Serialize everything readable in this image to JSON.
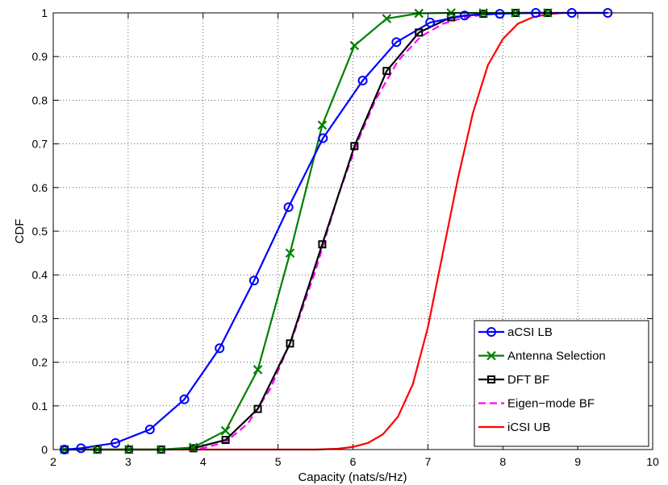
{
  "chart_data": {
    "type": "line",
    "title": "",
    "xlabel": "Capacity (nats/s/Hz)",
    "ylabel": "CDF",
    "xlim": [
      2,
      10
    ],
    "ylim": [
      0,
      1
    ],
    "xticks": [
      2,
      3,
      4,
      5,
      6,
      7,
      8,
      9,
      10
    ],
    "yticks": [
      0,
      0.1,
      0.2,
      0.3,
      0.4,
      0.5,
      0.6,
      0.7,
      0.8,
      0.9,
      1
    ],
    "xtick_labels": [
      "2",
      "3",
      "4",
      "5",
      "6",
      "7",
      "8",
      "9",
      "10"
    ],
    "ytick_labels": [
      "0",
      "0.1",
      "0.2",
      "0.3",
      "0.4",
      "0.5",
      "0.6",
      "0.7",
      "0.8",
      "0.9",
      "1"
    ],
    "grid": "dotted",
    "legend_position": "bottom-right",
    "series": [
      {
        "name": "aCSI LB",
        "color": "#0000ff",
        "marker": "circle",
        "dash": "solid",
        "x": [
          2.15,
          2.37,
          2.83,
          3.29,
          3.75,
          4.22,
          4.68,
          5.14,
          5.6,
          6.13,
          6.58,
          7.03,
          7.49,
          7.96,
          8.44,
          8.92,
          9.4
        ],
        "y": [
          0.0,
          0.003,
          0.015,
          0.046,
          0.115,
          0.232,
          0.387,
          0.555,
          0.713,
          0.845,
          0.933,
          0.978,
          0.994,
          0.998,
          1.0,
          1.0,
          1.0
        ]
      },
      {
        "name": "Antenna Selection",
        "color": "#008000",
        "marker": "x",
        "dash": "solid",
        "x": [
          2.15,
          2.59,
          3.01,
          3.44,
          3.87,
          4.3,
          4.73,
          5.16,
          5.59,
          6.02,
          6.45,
          6.88,
          7.31,
          7.74,
          8.17,
          8.6
        ],
        "y": [
          0.0,
          0.0,
          0.0,
          0.0,
          0.005,
          0.043,
          0.183,
          0.45,
          0.743,
          0.925,
          0.987,
          0.999,
          1.0,
          1.0,
          1.0,
          1.0
        ]
      },
      {
        "name": "DFT BF",
        "color": "#000000",
        "marker": "square",
        "dash": "solid",
        "x": [
          2.15,
          2.59,
          3.01,
          3.44,
          3.87,
          4.3,
          4.73,
          5.16,
          5.59,
          6.02,
          6.45,
          6.88,
          7.31,
          7.74,
          8.17,
          8.6
        ],
        "y": [
          0.0,
          0.0,
          0.0,
          0.0,
          0.003,
          0.022,
          0.093,
          0.243,
          0.47,
          0.695,
          0.867,
          0.955,
          0.99,
          0.998,
          1.0,
          1.0
        ]
      },
      {
        "name": "Eigen−mode BF",
        "color": "#ff00ff",
        "marker": "none",
        "dash": "dashed",
        "x": [
          2.15,
          3.0,
          3.6,
          4.0,
          4.3,
          4.6,
          4.9,
          5.2,
          5.5,
          5.8,
          6.05,
          6.3,
          6.6,
          6.9,
          7.2,
          7.5,
          7.8,
          8.2,
          8.6
        ],
        "y": [
          0.0,
          0.0,
          0.0,
          0.003,
          0.017,
          0.06,
          0.14,
          0.26,
          0.41,
          0.58,
          0.7,
          0.8,
          0.89,
          0.945,
          0.975,
          0.99,
          0.997,
          1.0,
          1.0
        ]
      },
      {
        "name": "iCSI UB",
        "color": "#ff0000",
        "marker": "none",
        "dash": "solid",
        "x": [
          2.15,
          5.0,
          5.5,
          5.8,
          6.0,
          6.2,
          6.4,
          6.6,
          6.8,
          7.0,
          7.2,
          7.4,
          7.6,
          7.8,
          8.0,
          8.2,
          8.4,
          8.6,
          8.8,
          9.0,
          9.4
        ],
        "y": [
          0.0,
          0.0,
          0.0,
          0.002,
          0.006,
          0.015,
          0.035,
          0.075,
          0.15,
          0.28,
          0.45,
          0.62,
          0.77,
          0.88,
          0.94,
          0.975,
          0.99,
          0.997,
          1.0,
          1.0,
          1.0
        ]
      }
    ]
  }
}
